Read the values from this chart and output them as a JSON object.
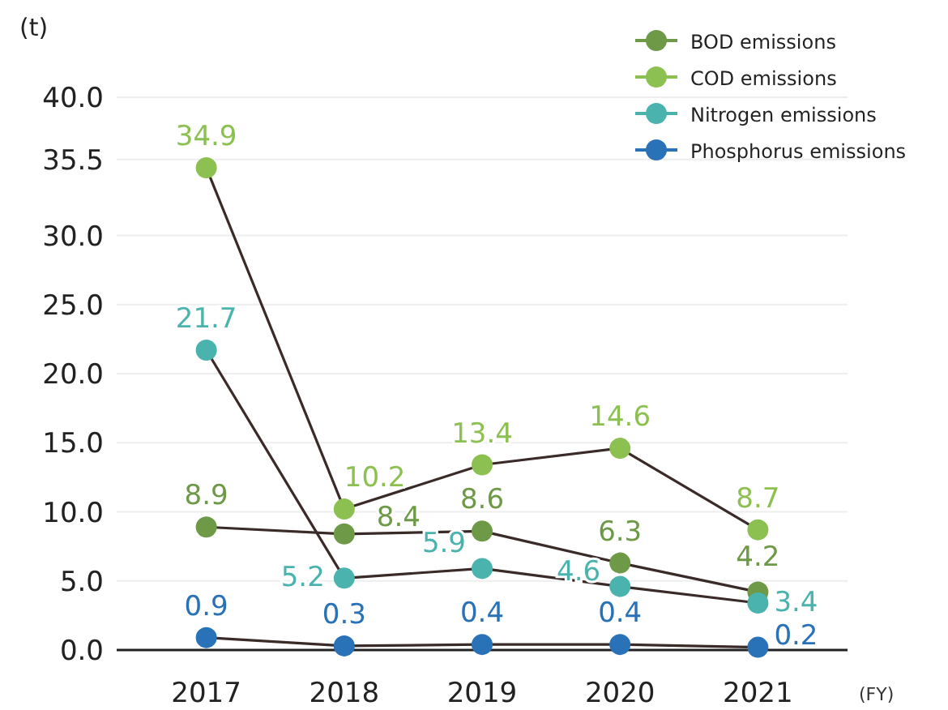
{
  "chart_data": {
    "type": "line",
    "ylabel": "(t)",
    "xlabel": "(FY)",
    "categories": [
      "2017",
      "2018",
      "2019",
      "2020",
      "2021"
    ],
    "ylim": [
      0,
      40
    ],
    "yticks": [
      {
        "value": 0,
        "label": "0.0"
      },
      {
        "value": 5,
        "label": "5.0"
      },
      {
        "value": 10,
        "label": "10.0"
      },
      {
        "value": 15,
        "label": "15.0"
      },
      {
        "value": 20,
        "label": "20.0"
      },
      {
        "value": 25,
        "label": "25.0"
      },
      {
        "value": 30,
        "label": "30.0"
      },
      {
        "value": 35.5,
        "label": "35.5"
      },
      {
        "value": 40,
        "label": "40.0"
      }
    ],
    "grid": "y",
    "legend": "top right",
    "marker": "circle",
    "line_style": "solid",
    "data_labels": true,
    "series": [
      {
        "name": "BOD emissions",
        "color": "#6e9a48",
        "values": [
          8.9,
          8.4,
          8.6,
          6.3,
          4.2
        ]
      },
      {
        "name": "COD emissions",
        "color": "#8cc152",
        "values": [
          34.9,
          10.2,
          13.4,
          14.6,
          8.7
        ]
      },
      {
        "name": "Nitrogen emissions",
        "color": "#4bb3ad",
        "values": [
          21.7,
          5.2,
          5.9,
          4.6,
          3.4
        ]
      },
      {
        "name": "Phosphorus emissions",
        "color": "#2a72b8",
        "values": [
          0.9,
          0.3,
          0.4,
          0.4,
          0.2
        ]
      }
    ]
  }
}
